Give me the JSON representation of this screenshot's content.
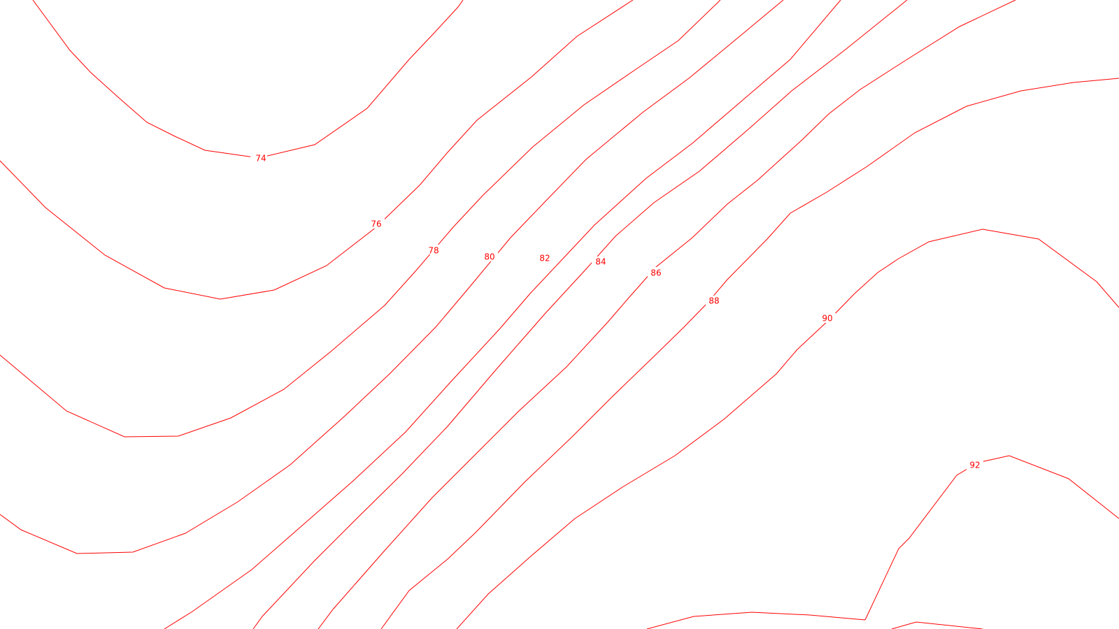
{
  "map": {
    "line_color": "#ff0000",
    "background": "#ffffff",
    "contours": [
      {
        "elevation": 74,
        "label": "74"
      },
      {
        "elevation": 76,
        "label": "76"
      },
      {
        "elevation": 78,
        "label": "78"
      },
      {
        "elevation": 80,
        "label": "80"
      },
      {
        "elevation": 82,
        "label": "82"
      },
      {
        "elevation": 84,
        "label": "84"
      },
      {
        "elevation": 86,
        "label": "86"
      },
      {
        "elevation": 88,
        "label": "88"
      },
      {
        "elevation": 90,
        "label": "90"
      },
      {
        "elevation": 92,
        "label": "92"
      }
    ]
  }
}
